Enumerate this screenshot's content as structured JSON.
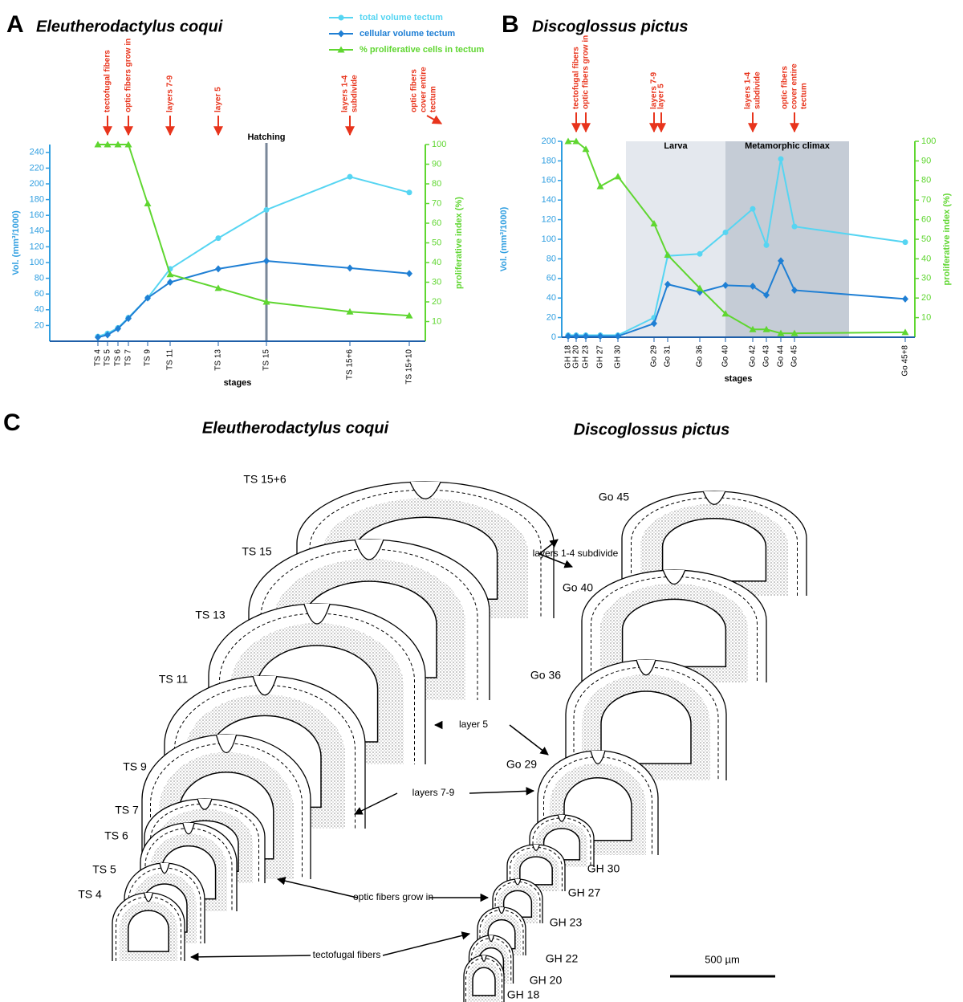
{
  "chart_data": [
    {
      "type": "line",
      "panel_label": "A",
      "title": "Eleutherodactylus coqui",
      "x_label": "stages",
      "y_label": "Vol. (mm³/1000)",
      "y2_label": "proliferative index (%)",
      "categories": [
        "TS 4",
        "TS 5",
        "TS 6",
        "TS 7",
        "TS 9",
        "TS 11",
        "TS 13",
        "TS 15",
        "TS 15+6",
        "TS 15+10"
      ],
      "series": [
        {
          "name": "total volume tectum",
          "color": "#56d5f2",
          "marker": "circle",
          "values": [
            6,
            10,
            17,
            30,
            55,
            92,
            131,
            167,
            209,
            189
          ]
        },
        {
          "name": "cellular volume tectum",
          "color": "#1f7fd4",
          "marker": "diamond",
          "values": [
            5,
            8,
            16,
            29,
            55,
            75,
            92,
            102,
            93,
            86
          ]
        },
        {
          "name": "% proliferative cells in tectum",
          "color": "#5fd630",
          "marker": "triangle",
          "axis": "y2",
          "values": [
            100,
            100,
            100,
            100,
            70,
            34,
            27,
            20,
            15,
            13
          ]
        }
      ],
      "legend": true,
      "ylim": [
        0,
        250
      ],
      "yticks": [
        20,
        40,
        60,
        80,
        100,
        120,
        140,
        160,
        180,
        200,
        220,
        240
      ],
      "y2lim": [
        0,
        100
      ],
      "y2ticks": [
        10,
        20,
        30,
        40,
        50,
        60,
        70,
        80,
        90,
        100
      ],
      "marker_line": {
        "stage": "TS 15",
        "label": "Hatching"
      },
      "annotations": [
        {
          "lines": [
            "tectofugal fibers"
          ],
          "stage": "TS 5"
        },
        {
          "lines": [
            "optic fibers grow in"
          ],
          "stage": "TS 7"
        },
        {
          "lines": [
            "layers 7-9"
          ],
          "stage": "TS 11"
        },
        {
          "lines": [
            "layer 5"
          ],
          "stage": "TS 13"
        },
        {
          "lines": [
            "layers 1-4",
            "subdivide"
          ],
          "stage": "TS 15+6"
        },
        {
          "lines": [
            "optic fibers",
            "cover entire",
            "tectum"
          ],
          "stage": "TS 15+10"
        }
      ]
    },
    {
      "type": "line",
      "panel_label": "B",
      "title": "Discoglossus pictus",
      "x_label": "stages",
      "y_label": "Vol. (mm³/1000)",
      "y2_label": "proliferative index (%)",
      "categories": [
        "GH 18",
        "GH 20",
        "GH 23",
        "GH 27",
        "GH 30",
        "Go 29",
        "Go 31",
        "Go 36",
        "Go 40",
        "Go 42",
        "Go 43",
        "Go 44",
        "Go 45",
        "Go 45+8"
      ],
      "series": [
        {
          "color": "#56d5f2",
          "marker": "circle",
          "values": [
            2,
            2,
            2,
            2,
            2,
            20,
            83,
            85,
            107,
            131,
            94,
            182,
            113,
            97
          ]
        },
        {
          "color": "#1f7fd4",
          "marker": "diamond",
          "values": [
            1,
            1,
            1,
            1,
            1,
            14,
            54,
            46,
            53,
            52,
            43,
            78,
            48,
            39
          ]
        },
        {
          "color": "#5fd630",
          "marker": "triangle",
          "axis": "y2",
          "values": [
            100,
            100,
            96,
            77,
            82,
            58,
            42,
            25,
            12,
            4,
            4,
            2,
            2,
            2.5
          ]
        }
      ],
      "legend": false,
      "ylim": [
        0,
        200
      ],
      "yticks": [
        0,
        20,
        40,
        60,
        80,
        100,
        120,
        140,
        160,
        180,
        200
      ],
      "y2lim": [
        0,
        100
      ],
      "y2ticks": [
        10,
        20,
        30,
        40,
        50,
        60,
        70,
        80,
        90,
        100
      ],
      "spans": [
        {
          "label": "Larva",
          "color": "#e4e8ee"
        },
        {
          "label": "Metamorphic climax",
          "color": "#c5ccd6"
        }
      ],
      "annotations": [
        {
          "lines": [
            "tectofugal fibers"
          ],
          "stage": "GH 20"
        },
        {
          "lines": [
            "optic fibers grow in"
          ],
          "stage": "GH 23"
        },
        {
          "lines": [
            "layers 7-9"
          ],
          "stage": "Go 29"
        },
        {
          "lines": [
            "layer 5"
          ],
          "stage": "Go 29"
        },
        {
          "lines": [
            "layers 1-4",
            "subdivide"
          ],
          "stage": "Go 42"
        },
        {
          "lines": [
            "optic fibers",
            "cover entire",
            "tectum"
          ],
          "stage": "Go 45"
        }
      ]
    }
  ],
  "panel_c": {
    "panel_label": "C",
    "left_title": "Eleutherodactylus coqui",
    "right_title": "Discoglossus pictus",
    "left_stages": [
      "TS 15+6",
      "TS 15",
      "TS 13",
      "TS 11",
      "TS 9",
      "TS 7",
      "TS 6",
      "TS 5",
      "TS 4"
    ],
    "right_stages": [
      "Go 45",
      "Go 40",
      "Go 36",
      "Go 29",
      "GH 30",
      "GH 27",
      "GH 23",
      "GH 22",
      "GH 20",
      "GH 18"
    ],
    "annotations": [
      "layers 1-4 subdivide",
      "layer 5",
      "layers 7-9",
      "optic fibers grow in",
      "tectofugal fibers"
    ],
    "scale_bar": "500 µm"
  }
}
